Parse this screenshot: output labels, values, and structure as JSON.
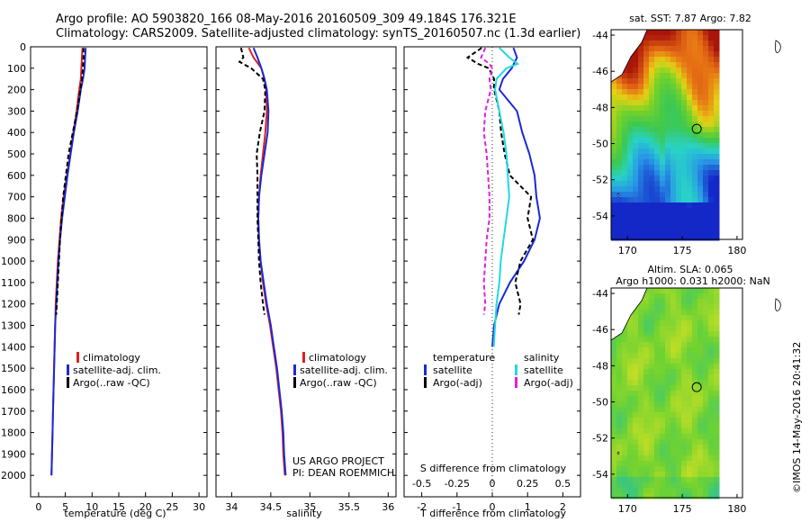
{
  "header": {
    "title_line1": "Argo profile: AO 5903820_166 08-May-2016 20160509_309 49.184S 176.321E",
    "title_line2": "Climatology: CARS2009. Satellite-adjusted climatology: synTS_20160507.nc (1.3d earlier)"
  },
  "depth_ticks": [
    0,
    100,
    200,
    300,
    400,
    500,
    600,
    700,
    800,
    900,
    1000,
    1100,
    1200,
    1300,
    1400,
    1500,
    1600,
    1700,
    1800,
    1900,
    2000
  ],
  "colors": {
    "climatology": "#e02020",
    "satellite": "#1a2ad6",
    "argo": "#000000",
    "sal_satellite": "#22d8e0",
    "sal_argo": "#e020e0"
  },
  "chart_data": [
    {
      "type": "line",
      "name": "temperature-profile",
      "xlabel": "temperature (deg C)",
      "xlim": [
        -1.5,
        31.5
      ],
      "xticks": [
        0,
        5,
        10,
        15,
        20,
        25,
        30
      ],
      "ylim": [
        0,
        2100
      ],
      "legend": [
        "climatology",
        "satellite-adj. clim.",
        "Argo(..raw -QC)"
      ],
      "series": [
        {
          "name": "climatology",
          "depth": [
            5,
            50,
            100,
            150,
            200,
            300,
            400,
            500,
            600,
            700,
            800,
            900,
            1000,
            1100,
            1200,
            1300,
            1400,
            1500,
            1600,
            1700,
            1800,
            1900,
            2000
          ],
          "values": [
            8.2,
            8.1,
            8.0,
            7.9,
            7.6,
            7.1,
            6.5,
            5.9,
            5.3,
            4.7,
            4.2,
            3.9,
            3.6,
            3.4,
            3.2,
            3.1,
            3.0,
            2.9,
            2.8,
            2.7,
            2.6,
            2.5,
            2.4
          ]
        },
        {
          "name": "satellite-adj. clim.",
          "depth": [
            5,
            50,
            100,
            150,
            200,
            300,
            400,
            500,
            600,
            700,
            800,
            900,
            1000,
            1100,
            1200,
            1300,
            1400,
            1500,
            1600,
            1700,
            1800,
            1900,
            2000
          ],
          "values": [
            8.8,
            8.7,
            8.6,
            8.3,
            7.9,
            7.3,
            6.6,
            6.0,
            5.4,
            4.9,
            4.4,
            4.0,
            3.7,
            3.5,
            3.3,
            3.1,
            3.0,
            2.9,
            2.8,
            2.7,
            2.6,
            2.5,
            2.4
          ]
        },
        {
          "name": "Argo(..raw -QC)",
          "depth": [
            5,
            50,
            100,
            150,
            200,
            300,
            400,
            500,
            600,
            700,
            800,
            900,
            1000,
            1100,
            1200,
            1250
          ],
          "values": [
            8.4,
            8.4,
            8.3,
            8.1,
            7.8,
            7.2,
            6.4,
            5.6,
            5.1,
            4.6,
            4.3,
            4.0,
            3.8,
            3.6,
            3.4,
            3.3
          ]
        }
      ]
    },
    {
      "type": "line",
      "name": "salinity-profile",
      "xlabel": "salinity",
      "xlim": [
        33.8,
        36.1
      ],
      "xticks": [
        34,
        34.5,
        35,
        35.5,
        36
      ],
      "ylim": [
        0,
        2100
      ],
      "legend": [
        "climatology",
        "satellite-adj. clim.",
        "Argo(..raw -QC)"
      ],
      "annotation": [
        "US ARGO PROJECT",
        "PI: DEAN ROEMMICH"
      ],
      "series": [
        {
          "name": "climatology",
          "depth": [
            5,
            50,
            100,
            150,
            200,
            300,
            400,
            500,
            600,
            700,
            800,
            900,
            1000,
            1100,
            1200,
            1300,
            1400,
            1500,
            1600,
            1700,
            1800,
            1900,
            2000
          ],
          "values": [
            34.22,
            34.28,
            34.38,
            34.42,
            34.44,
            34.45,
            34.43,
            34.4,
            34.37,
            34.35,
            34.34,
            34.35,
            34.37,
            34.4,
            34.44,
            34.49,
            34.53,
            34.57,
            34.6,
            34.63,
            34.65,
            34.66,
            34.68
          ]
        },
        {
          "name": "satellite-adj. clim.",
          "depth": [
            5,
            50,
            100,
            150,
            200,
            300,
            400,
            500,
            600,
            700,
            800,
            900,
            1000,
            1100,
            1200,
            1300,
            1400,
            1500,
            1600,
            1700,
            1800,
            1900,
            2000
          ],
          "values": [
            34.28,
            34.33,
            34.38,
            34.42,
            34.45,
            34.47,
            34.46,
            34.42,
            34.38,
            34.35,
            34.34,
            34.35,
            34.37,
            34.41,
            34.45,
            34.5,
            34.54,
            34.58,
            34.61,
            34.64,
            34.66,
            34.67,
            34.69
          ]
        },
        {
          "name": "Argo(..raw -QC)",
          "depth": [
            5,
            50,
            70,
            100,
            150,
            200,
            300,
            400,
            500,
            600,
            700,
            800,
            900,
            1000,
            1100,
            1200,
            1250
          ],
          "values": [
            34.12,
            34.15,
            34.1,
            34.25,
            34.4,
            34.43,
            34.42,
            34.36,
            34.32,
            34.33,
            34.33,
            34.33,
            34.34,
            34.35,
            34.37,
            34.4,
            34.42
          ]
        }
      ]
    },
    {
      "type": "line",
      "name": "difference-from-climatology",
      "xlabel": "T difference from climatology",
      "xlabel_top": "S difference from climatology",
      "xlim": [
        -2.5,
        2.5
      ],
      "xticks": [
        -2,
        -1,
        0,
        1,
        2
      ],
      "xticks_top": [
        "-0.5",
        "-0.25",
        "0",
        "0.25",
        "0.5"
      ],
      "ylim": [
        0,
        2100
      ],
      "legend_groups": [
        {
          "title": "temperature",
          "entries": [
            "satellite",
            "Argo(-adj)"
          ]
        },
        {
          "title": "salinity",
          "entries": [
            "satellite",
            "Argo(-adj)"
          ]
        }
      ],
      "series": [
        {
          "name": "temperature satellite",
          "depth": [
            5,
            50,
            100,
            150,
            200,
            250,
            300,
            400,
            500,
            600,
            700,
            800,
            900,
            1000,
            1100,
            1200,
            1300,
            1400
          ],
          "values": [
            0.6,
            0.7,
            0.55,
            0.3,
            0.2,
            0.45,
            0.7,
            0.85,
            1.05,
            1.2,
            1.25,
            1.35,
            1.2,
            0.9,
            0.5,
            0.2,
            0.05,
            0.0
          ]
        },
        {
          "name": "temperature Argo(-adj)",
          "depth": [
            5,
            50,
            80,
            100,
            150,
            200,
            300,
            400,
            500,
            600,
            700,
            800,
            900,
            1000,
            1100,
            1200,
            1250
          ],
          "values": [
            -0.3,
            -0.7,
            -0.4,
            -0.1,
            0.05,
            0.05,
            0.2,
            0.25,
            0.35,
            0.5,
            1.1,
            1.0,
            1.15,
            0.8,
            0.65,
            0.8,
            0.75
          ]
        },
        {
          "name": "salinity satellite",
          "depth": [
            5,
            50,
            80,
            100,
            150,
            200,
            300,
            400,
            500,
            600,
            700,
            800,
            900,
            1000,
            1100,
            1200,
            1300,
            1400
          ],
          "values": [
            0.05,
            0.12,
            0.18,
            0.1,
            0.03,
            0.02,
            0.05,
            0.08,
            0.1,
            0.11,
            0.12,
            0.1,
            0.08,
            0.06,
            0.05,
            0.03,
            0.02,
            0.01
          ]
        },
        {
          "name": "salinity Argo(-adj)",
          "depth": [
            5,
            50,
            80,
            100,
            150,
            200,
            300,
            400,
            500,
            600,
            700,
            800,
            900,
            1000,
            1100,
            1200,
            1250
          ],
          "values": [
            -0.05,
            -0.08,
            -0.02,
            0.0,
            -0.02,
            -0.01,
            -0.05,
            -0.06,
            -0.04,
            -0.03,
            -0.02,
            -0.02,
            -0.04,
            -0.05,
            -0.06,
            -0.05,
            -0.06
          ]
        }
      ]
    },
    {
      "type": "heatmap",
      "name": "sst-map",
      "title": "sat. SST: 7.87  Argo: 7.82",
      "xlim": [
        168.5,
        180.5
      ],
      "ylim": [
        -55.3,
        -43.7
      ],
      "xticks": [
        170,
        175,
        180
      ],
      "yticks": [
        -44,
        -46,
        -48,
        -50,
        -52,
        -54
      ],
      "float_position": {
        "lon": 176.321,
        "lat": -49.184
      }
    },
    {
      "type": "heatmap",
      "name": "sla-map",
      "title_line1": "Altim. SLA: 0.065",
      "title_line2": "Argo h1000: 0.031 h2000: NaN",
      "xlim": [
        168.5,
        180.5
      ],
      "ylim": [
        -55.3,
        -43.7
      ],
      "xticks": [
        170,
        175,
        180
      ],
      "yticks": [
        -44,
        -46,
        -48,
        -50,
        -52,
        -54
      ],
      "float_position": {
        "lon": 176.321,
        "lat": -49.184
      }
    }
  ],
  "footer_vertical": "©IMOS 14-May-2016 20:41:32"
}
